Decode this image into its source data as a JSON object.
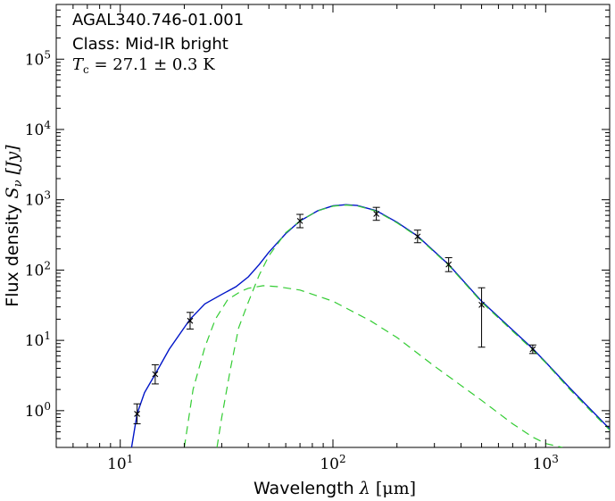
{
  "chart_data": {
    "type": "scatter",
    "title": "AGAL340.746-01.001",
    "annotations": {
      "line1": "AGAL340.746-01.001",
      "line2": "Class: Mid-IR bright",
      "line3_sym": "T",
      "line3_sub": "c",
      "line3_rest": " = 27.1 ± 0.3 K"
    },
    "xlabel": {
      "text": "Wavelength ",
      "sym": "λ",
      "unit": " [μm]"
    },
    "ylabel": {
      "text": "Flux density ",
      "sym": "S",
      "sub": "ν",
      "unit": " [Jy]"
    },
    "x_scale": "log",
    "y_scale": "log",
    "xlim": [
      5,
      2000
    ],
    "ylim": [
      0.3,
      600000
    ],
    "x_ticks": [
      {
        "value": 10,
        "mantissa": "10",
        "exp": "1"
      },
      {
        "value": 100,
        "mantissa": "10",
        "exp": "2"
      },
      {
        "value": 1000,
        "mantissa": "10",
        "exp": "3"
      }
    ],
    "y_ticks": [
      {
        "value": 1,
        "mantissa": "10",
        "exp": "0"
      },
      {
        "value": 10,
        "mantissa": "10",
        "exp": "1"
      },
      {
        "value": 100,
        "mantissa": "10",
        "exp": "2"
      },
      {
        "value": 1000,
        "mantissa": "10",
        "exp": "3"
      },
      {
        "value": 10000,
        "mantissa": "10",
        "exp": "4"
      },
      {
        "value": 100000,
        "mantissa": "10",
        "exp": "5"
      }
    ],
    "grid": false,
    "legend": "none",
    "points": [
      {
        "x": 12,
        "y": 0.9,
        "ylo": 0.65,
        "yhi": 1.25
      },
      {
        "x": 14.6,
        "y": 3.3,
        "ylo": 2.4,
        "yhi": 4.5
      },
      {
        "x": 21.3,
        "y": 19,
        "ylo": 14.5,
        "yhi": 25
      },
      {
        "x": 70,
        "y": 500,
        "ylo": 400,
        "yhi": 620
      },
      {
        "x": 160,
        "y": 630,
        "ylo": 510,
        "yhi": 780
      },
      {
        "x": 250,
        "y": 300,
        "ylo": 245,
        "yhi": 370
      },
      {
        "x": 350,
        "y": 120,
        "ylo": 95,
        "yhi": 150
      },
      {
        "x": 500,
        "y": 32,
        "ylo": 8,
        "yhi": 56
      },
      {
        "x": 870,
        "y": 7.5,
        "ylo": 6.5,
        "yhi": 8.6
      }
    ],
    "series": [
      {
        "style": "solid",
        "color": "#0015c8",
        "points": [
          [
            11.3,
            0.3
          ],
          [
            12,
            0.9
          ],
          [
            13,
            1.8
          ],
          [
            14.6,
            3.3
          ],
          [
            17,
            7.5
          ],
          [
            21.3,
            20
          ],
          [
            25,
            33
          ],
          [
            30,
            45
          ],
          [
            35,
            58
          ],
          [
            40,
            80
          ],
          [
            45,
            120
          ],
          [
            50,
            180
          ],
          [
            60,
            330
          ],
          [
            70,
            500
          ],
          [
            85,
            700
          ],
          [
            100,
            820
          ],
          [
            115,
            850
          ],
          [
            130,
            830
          ],
          [
            160,
            700
          ],
          [
            200,
            480
          ],
          [
            250,
            305
          ],
          [
            350,
            120
          ],
          [
            500,
            36
          ],
          [
            700,
            14
          ],
          [
            870,
            7.6
          ],
          [
            1000,
            4.9
          ],
          [
            1300,
            2.1
          ],
          [
            1600,
            1.1
          ],
          [
            2000,
            0.55
          ]
        ]
      },
      {
        "style": "dashed",
        "color": "#33cc33",
        "points": [
          [
            20,
            0.3
          ],
          [
            22,
            2
          ],
          [
            25,
            8
          ],
          [
            28,
            20
          ],
          [
            32,
            38
          ],
          [
            37,
            50
          ],
          [
            40,
            55
          ],
          [
            47,
            60
          ],
          [
            55,
            58
          ],
          [
            70,
            52
          ],
          [
            100,
            36
          ],
          [
            150,
            19
          ],
          [
            200,
            11
          ],
          [
            300,
            4.3
          ],
          [
            500,
            1.4
          ],
          [
            700,
            0.65
          ],
          [
            870,
            0.42
          ],
          [
            1000,
            0.34
          ],
          [
            1200,
            0.3
          ]
        ]
      },
      {
        "style": "dashed",
        "color": "#33cc33",
        "points": [
          [
            28.5,
            0.3
          ],
          [
            30,
            0.8
          ],
          [
            33,
            4
          ],
          [
            36,
            15
          ],
          [
            40,
            35
          ],
          [
            45,
            85
          ],
          [
            50,
            160
          ],
          [
            60,
            340
          ],
          [
            70,
            500
          ],
          [
            85,
            700
          ],
          [
            100,
            810
          ],
          [
            115,
            840
          ],
          [
            130,
            820
          ],
          [
            160,
            690
          ],
          [
            200,
            470
          ],
          [
            250,
            298
          ],
          [
            350,
            117
          ],
          [
            500,
            35
          ],
          [
            700,
            13.5
          ],
          [
            870,
            7.3
          ],
          [
            1000,
            4.8
          ],
          [
            1300,
            2
          ],
          [
            1600,
            1.05
          ],
          [
            2000,
            0.53
          ]
        ]
      }
    ]
  }
}
